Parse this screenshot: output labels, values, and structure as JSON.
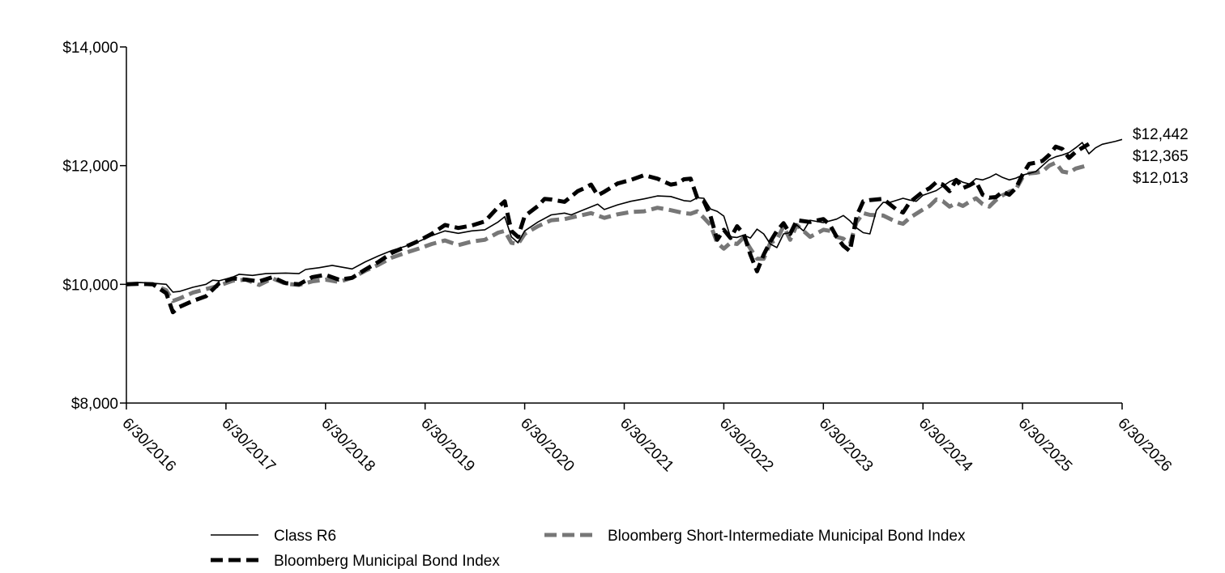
{
  "chart_data": {
    "type": "line",
    "title": "",
    "xlabel": "",
    "ylabel": "",
    "ylim": [
      8000,
      14000
    ],
    "y_ticks": [
      "$8,000",
      "$10,000",
      "$12,000",
      "$14,000"
    ],
    "y_tick_values": [
      8000,
      10000,
      12000,
      14000
    ],
    "x_tick_labels": [
      "6/30/2016",
      "6/30/2017",
      "6/30/2018",
      "6/30/2019",
      "6/30/2020",
      "6/30/2021",
      "6/30/2022",
      "6/30/2023",
      "6/30/2024",
      "6/30/2025",
      "6/30/2026"
    ],
    "x_range_months": [
      0,
      120
    ],
    "grid": false,
    "legend_position": "bottom",
    "end_labels": [
      "$12,442",
      "$12,365",
      "$12,013"
    ],
    "series": [
      {
        "name": "Class R6",
        "style": "solid-thin",
        "color": "#000000",
        "points": [
          [
            0,
            10000
          ],
          [
            2,
            10030
          ],
          [
            4,
            10020
          ],
          [
            6,
            10000
          ],
          [
            7,
            9870
          ],
          [
            8,
            9880
          ],
          [
            10,
            9950
          ],
          [
            12,
            10000
          ],
          [
            13,
            10070
          ],
          [
            14,
            10060
          ],
          [
            16,
            10120
          ],
          [
            17,
            10170
          ],
          [
            19,
            10150
          ],
          [
            21,
            10180
          ],
          [
            24,
            10190
          ],
          [
            26,
            10180
          ],
          [
            27,
            10250
          ],
          [
            29,
            10280
          ],
          [
            31,
            10320
          ],
          [
            34,
            10260
          ],
          [
            36,
            10380
          ],
          [
            38,
            10480
          ],
          [
            40,
            10570
          ],
          [
            42,
            10640
          ],
          [
            44,
            10720
          ],
          [
            46,
            10820
          ],
          [
            48,
            10900
          ],
          [
            50,
            10860
          ],
          [
            52,
            10900
          ],
          [
            54,
            10920
          ],
          [
            56,
            11050
          ],
          [
            57,
            11140
          ],
          [
            58,
            10800
          ],
          [
            59,
            10700
          ],
          [
            60,
            10900
          ],
          [
            62,
            11050
          ],
          [
            64,
            11170
          ],
          [
            66,
            11200
          ],
          [
            67,
            11170
          ],
          [
            69,
            11260
          ],
          [
            71,
            11350
          ],
          [
            72,
            11260
          ],
          [
            74,
            11340
          ],
          [
            76,
            11400
          ],
          [
            78,
            11440
          ],
          [
            80,
            11490
          ],
          [
            82,
            11480
          ],
          [
            84,
            11410
          ],
          [
            85,
            11400
          ],
          [
            86,
            11460
          ],
          [
            87,
            11450
          ],
          [
            88,
            11270
          ],
          [
            89,
            11230
          ],
          [
            90,
            11150
          ],
          [
            91,
            10800
          ],
          [
            92,
            10790
          ],
          [
            93,
            10830
          ],
          [
            94,
            10780
          ],
          [
            95,
            10930
          ],
          [
            96,
            10850
          ],
          [
            97,
            10680
          ],
          [
            98,
            10620
          ],
          [
            99,
            10850
          ],
          [
            100,
            10870
          ],
          [
            101,
            11000
          ],
          [
            102,
            10900
          ],
          [
            103,
            11080
          ],
          [
            105,
            11040
          ],
          [
            107,
            11100
          ],
          [
            108,
            11160
          ],
          [
            109,
            11070
          ],
          [
            110,
            10950
          ],
          [
            111,
            10870
          ],
          [
            112,
            10850
          ],
          [
            113,
            11250
          ],
          [
            114,
            11380
          ],
          [
            115,
            11380
          ],
          [
            117,
            11450
          ],
          [
            118,
            11420
          ],
          [
            119,
            11400
          ],
          [
            120,
            11500
          ],
          [
            122,
            11580
          ],
          [
            124,
            11730
          ],
          [
            125,
            11780
          ],
          [
            126,
            11720
          ],
          [
            127,
            11690
          ],
          [
            128,
            11780
          ],
          [
            129,
            11760
          ],
          [
            130,
            11800
          ],
          [
            131,
            11860
          ],
          [
            132,
            11800
          ],
          [
            133,
            11760
          ],
          [
            134,
            11790
          ],
          [
            135,
            11840
          ],
          [
            136,
            11870
          ],
          [
            137,
            11900
          ],
          [
            138,
            12000
          ],
          [
            139,
            12100
          ],
          [
            140,
            12150
          ],
          [
            141,
            12180
          ],
          [
            142,
            12220
          ],
          [
            143,
            12300
          ],
          [
            144,
            12390
          ],
          [
            145,
            12200
          ],
          [
            146,
            12300
          ],
          [
            147,
            12360
          ],
          [
            149,
            12410
          ],
          [
            150,
            12442
          ]
        ]
      },
      {
        "name": "Bloomberg Municipal Bond Index",
        "style": "dashed-thick",
        "color": "#000000",
        "points": [
          [
            0,
            10000
          ],
          [
            2,
            10010
          ],
          [
            4,
            10000
          ],
          [
            6,
            9850
          ],
          [
            7,
            9530
          ],
          [
            8,
            9620
          ],
          [
            10,
            9720
          ],
          [
            12,
            9800
          ],
          [
            14,
            10020
          ],
          [
            16,
            10100
          ],
          [
            18,
            10080
          ],
          [
            20,
            10050
          ],
          [
            22,
            10120
          ],
          [
            24,
            10020
          ],
          [
            26,
            10000
          ],
          [
            28,
            10120
          ],
          [
            30,
            10160
          ],
          [
            32,
            10080
          ],
          [
            34,
            10110
          ],
          [
            36,
            10250
          ],
          [
            38,
            10380
          ],
          [
            40,
            10530
          ],
          [
            42,
            10630
          ],
          [
            44,
            10730
          ],
          [
            46,
            10850
          ],
          [
            48,
            11000
          ],
          [
            50,
            10950
          ],
          [
            52,
            10990
          ],
          [
            54,
            11060
          ],
          [
            56,
            11300
          ],
          [
            57,
            11400
          ],
          [
            58,
            10900
          ],
          [
            59,
            10800
          ],
          [
            60,
            11150
          ],
          [
            62,
            11320
          ],
          [
            63,
            11440
          ],
          [
            64,
            11430
          ],
          [
            66,
            11390
          ],
          [
            68,
            11570
          ],
          [
            69,
            11620
          ],
          [
            70,
            11680
          ],
          [
            71,
            11500
          ],
          [
            72,
            11560
          ],
          [
            74,
            11700
          ],
          [
            76,
            11760
          ],
          [
            78,
            11840
          ],
          [
            80,
            11780
          ],
          [
            82,
            11680
          ],
          [
            83,
            11700
          ],
          [
            84,
            11770
          ],
          [
            85,
            11780
          ],
          [
            86,
            11460
          ],
          [
            87,
            11400
          ],
          [
            88,
            11150
          ],
          [
            89,
            10750
          ],
          [
            90,
            10920
          ],
          [
            91,
            10780
          ],
          [
            92,
            10980
          ],
          [
            93,
            10850
          ],
          [
            94,
            10500
          ],
          [
            95,
            10220
          ],
          [
            96,
            10500
          ],
          [
            97,
            10720
          ],
          [
            98,
            10900
          ],
          [
            99,
            11030
          ],
          [
            100,
            10850
          ],
          [
            101,
            11080
          ],
          [
            103,
            11050
          ],
          [
            105,
            11100
          ],
          [
            106,
            11000
          ],
          [
            107,
            10800
          ],
          [
            108,
            10650
          ],
          [
            109,
            10560
          ],
          [
            110,
            11150
          ],
          [
            111,
            11400
          ],
          [
            112,
            11420
          ],
          [
            114,
            11440
          ],
          [
            116,
            11260
          ],
          [
            117,
            11210
          ],
          [
            118,
            11380
          ],
          [
            120,
            11560
          ],
          [
            121,
            11620
          ],
          [
            122,
            11720
          ],
          [
            123,
            11680
          ],
          [
            124,
            11570
          ],
          [
            125,
            11760
          ],
          [
            126,
            11620
          ],
          [
            127,
            11670
          ],
          [
            128,
            11730
          ],
          [
            129,
            11510
          ],
          [
            130,
            11460
          ],
          [
            131,
            11470
          ],
          [
            132,
            11560
          ],
          [
            133,
            11510
          ],
          [
            134,
            11620
          ],
          [
            135,
            11850
          ],
          [
            136,
            12030
          ],
          [
            137,
            12050
          ],
          [
            138,
            12080
          ],
          [
            139,
            12180
          ],
          [
            140,
            12320
          ],
          [
            141,
            12280
          ],
          [
            142,
            12130
          ],
          [
            143,
            12230
          ],
          [
            144,
            12300
          ],
          [
            145,
            12365
          ]
        ]
      },
      {
        "name": "Bloomberg Short-Intermediate Municipal Bond Index",
        "style": "dashed-gray",
        "color": "#777777",
        "points": [
          [
            0,
            10000
          ],
          [
            2,
            10010
          ],
          [
            4,
            10000
          ],
          [
            6,
            9900
          ],
          [
            7,
            9720
          ],
          [
            8,
            9760
          ],
          [
            10,
            9860
          ],
          [
            12,
            9920
          ],
          [
            14,
            9980
          ],
          [
            16,
            10060
          ],
          [
            18,
            10080
          ],
          [
            20,
            9990
          ],
          [
            22,
            10100
          ],
          [
            24,
            10010
          ],
          [
            26,
            9990
          ],
          [
            28,
            10050
          ],
          [
            30,
            10080
          ],
          [
            32,
            10040
          ],
          [
            34,
            10110
          ],
          [
            36,
            10230
          ],
          [
            38,
            10330
          ],
          [
            40,
            10450
          ],
          [
            42,
            10530
          ],
          [
            44,
            10600
          ],
          [
            46,
            10680
          ],
          [
            48,
            10740
          ],
          [
            50,
            10660
          ],
          [
            52,
            10720
          ],
          [
            54,
            10750
          ],
          [
            56,
            10870
          ],
          [
            57,
            10900
          ],
          [
            58,
            10700
          ],
          [
            59,
            10680
          ],
          [
            60,
            10850
          ],
          [
            62,
            10980
          ],
          [
            64,
            11080
          ],
          [
            66,
            11100
          ],
          [
            68,
            11150
          ],
          [
            70,
            11200
          ],
          [
            72,
            11120
          ],
          [
            74,
            11180
          ],
          [
            76,
            11220
          ],
          [
            78,
            11230
          ],
          [
            80,
            11290
          ],
          [
            82,
            11250
          ],
          [
            84,
            11200
          ],
          [
            85,
            11190
          ],
          [
            86,
            11230
          ],
          [
            87,
            11120
          ],
          [
            88,
            11000
          ],
          [
            89,
            10700
          ],
          [
            90,
            10600
          ],
          [
            91,
            10700
          ],
          [
            92,
            10680
          ],
          [
            93,
            10790
          ],
          [
            94,
            10600
          ],
          [
            95,
            10430
          ],
          [
            96,
            10430
          ],
          [
            97,
            10700
          ],
          [
            98,
            10750
          ],
          [
            99,
            10980
          ],
          [
            100,
            10750
          ],
          [
            101,
            11000
          ],
          [
            103,
            10800
          ],
          [
            105,
            10920
          ],
          [
            106,
            10900
          ],
          [
            107,
            10800
          ],
          [
            108,
            10770
          ],
          [
            109,
            10680
          ],
          [
            110,
            11050
          ],
          [
            111,
            11200
          ],
          [
            112,
            11170
          ],
          [
            114,
            11160
          ],
          [
            116,
            11050
          ],
          [
            117,
            11020
          ],
          [
            118,
            11120
          ],
          [
            120,
            11260
          ],
          [
            121,
            11320
          ],
          [
            122,
            11430
          ],
          [
            123,
            11400
          ],
          [
            124,
            11310
          ],
          [
            125,
            11370
          ],
          [
            126,
            11320
          ],
          [
            127,
            11390
          ],
          [
            128,
            11450
          ],
          [
            129,
            11350
          ],
          [
            130,
            11310
          ],
          [
            131,
            11420
          ],
          [
            132,
            11500
          ],
          [
            133,
            11560
          ],
          [
            134,
            11600
          ],
          [
            135,
            11800
          ],
          [
            136,
            11870
          ],
          [
            137,
            11880
          ],
          [
            138,
            11900
          ],
          [
            139,
            12000
          ],
          [
            140,
            12050
          ],
          [
            141,
            11900
          ],
          [
            142,
            11880
          ],
          [
            143,
            11950
          ],
          [
            144,
            11980
          ],
          [
            145,
            12013
          ]
        ]
      }
    ]
  }
}
